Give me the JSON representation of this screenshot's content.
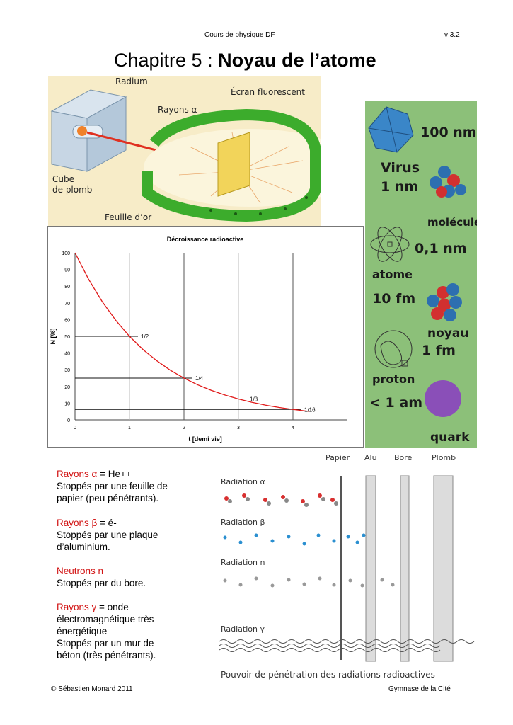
{
  "header": {
    "left": "Cours de physique DF",
    "right": "v 3.2"
  },
  "title": {
    "prefix": "Chapitre 5 : ",
    "bold": "Noyau de l’atome"
  },
  "rutherford_figure": {
    "radium": "Radium",
    "ecran": "Écran fluorescent",
    "rayons": "Rayons α",
    "cube_line1": "Cube",
    "cube_line2": "de plomb",
    "feuille": "Feuille d’or",
    "colors": {
      "background": "#f7ecc8",
      "ring": "#3cac2c",
      "beam": "#e03020",
      "foil": "#f2d45a"
    }
  },
  "scale_figure": {
    "labels": [
      "100 nm",
      "Virus",
      "1 nm",
      "molécule",
      "0,1 nm",
      "atome",
      "10 fm",
      "noyau",
      "1 fm",
      "proton",
      "< 1 am",
      "quark"
    ],
    "colors": {
      "background": "#8cc079"
    }
  },
  "chart_data": {
    "type": "line",
    "title": "Décroissance radioactive",
    "xlabel": "t [demi vie]",
    "ylabel": "N [%]",
    "xlim": [
      0,
      5
    ],
    "ylim": [
      0,
      100
    ],
    "xticks": [
      "0",
      "1",
      "2",
      "3",
      "4"
    ],
    "yticks": [
      "0",
      "10",
      "20",
      "30",
      "40",
      "50",
      "60",
      "70",
      "80",
      "90",
      "100"
    ],
    "series": [
      {
        "x": [
          0,
          0.25,
          0.5,
          0.75,
          1,
          1.25,
          1.5,
          1.75,
          2,
          2.25,
          2.5,
          2.75,
          3,
          3.25,
          3.5,
          3.75,
          4,
          4.3
        ],
        "values": [
          100,
          84.1,
          70.7,
          59.5,
          50,
          42,
          35.4,
          29.7,
          25,
          21,
          17.7,
          14.9,
          12.5,
          10.5,
          8.8,
          7.4,
          6.25,
          5.1
        ],
        "color": "#e01818"
      }
    ],
    "annotations": [
      {
        "label": "1/2",
        "x": 1,
        "y": 50
      },
      {
        "label": "1/4",
        "x": 2,
        "y": 25
      },
      {
        "label": "1/8",
        "x": 3,
        "y": 12.5
      },
      {
        "label": "1/16",
        "x": 4,
        "y": 6.25
      }
    ],
    "grid": "vertical"
  },
  "radiation_text": [
    {
      "red": "Rayons α",
      "rest": " = He++",
      "lines": [
        "Stoppés par une feuille de",
        "papier (peu pénétrants)."
      ]
    },
    {
      "red": "Rayons β",
      "rest": " = é-",
      "lines": [
        "Stoppés par une plaque",
        "d’aluminium."
      ]
    },
    {
      "red": "Neutrons n",
      "rest": "",
      "lines": [
        "Stoppés par du bore."
      ]
    },
    {
      "red": "Rayons γ",
      "rest": " = onde",
      "lines": [
        "électromagnétique très",
        "énergétique",
        "Stoppés par un mur de",
        "béton (très pénétrants)."
      ]
    }
  ],
  "penetration_figure": {
    "columns": [
      "Papier",
      "Alu",
      "Bore",
      "Plomb"
    ],
    "rows": [
      "Radiation α",
      "Radiation β",
      "Radiation n",
      "Radiation γ"
    ],
    "caption": "Pouvoir de pénétration des radiations radioactives"
  },
  "footer": {
    "left": "© Sébastien Monard 2011",
    "right": "Gymnase de la Cité"
  }
}
